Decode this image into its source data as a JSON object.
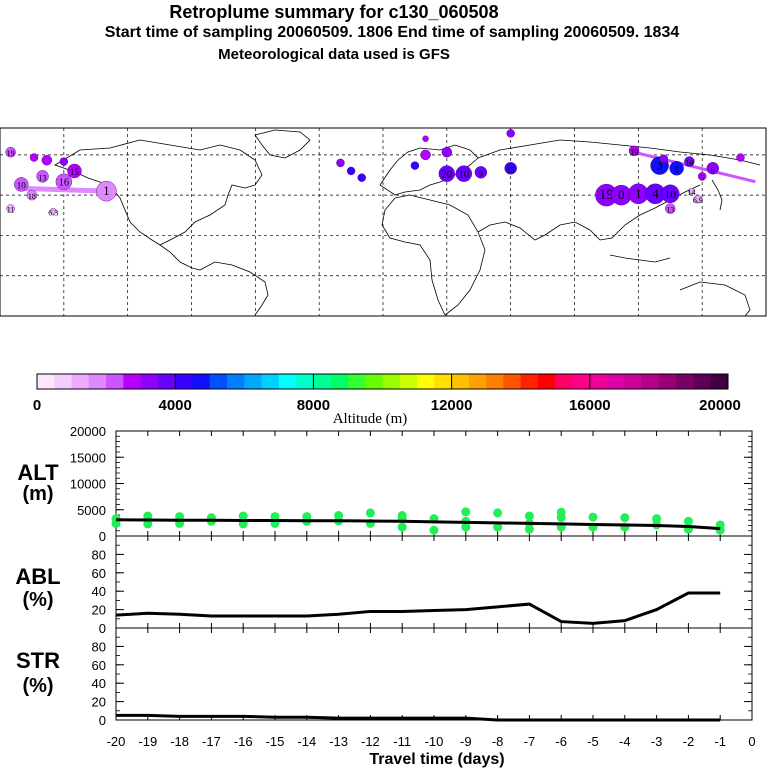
{
  "header": {
    "title": "Retroplume summary for c130_060508",
    "sampling": "Start time of sampling 20060509.  1806     End time of sampling 20060509.  1834",
    "met": "Meteorological data used is GFS"
  },
  "colorbar": {
    "label": "Altitude (m)",
    "ticks": [
      "0",
      "4000",
      "8000",
      "12000",
      "16000",
      "20000"
    ],
    "colors": [
      "#ffe6ff",
      "#f7ccff",
      "#eeaaff",
      "#e088ff",
      "#cc55ff",
      "#b400ff",
      "#8f00ff",
      "#6a00ff",
      "#3a00ff",
      "#1010ff",
      "#0050ff",
      "#0080ff",
      "#00a8ff",
      "#00d0ff",
      "#00ffff",
      "#00ffcc",
      "#00ff99",
      "#00ff66",
      "#33ff33",
      "#66ff00",
      "#99ff00",
      "#ccff00",
      "#ffff00",
      "#ffe000",
      "#ffc000",
      "#ffa000",
      "#ff8000",
      "#ff5500",
      "#ff2200",
      "#ff0000",
      "#ff0066",
      "#ff0088",
      "#ee0099",
      "#dd00aa",
      "#cc0099",
      "#b30088",
      "#990077",
      "#7a0066",
      "#5c0055",
      "#400040"
    ]
  },
  "map": {
    "points": [
      {
        "lon": -175,
        "lat": 62,
        "r": 5,
        "color": "#cc55ff",
        "label": "19"
      },
      {
        "lon": -164,
        "lat": 58,
        "r": 4,
        "color": "#b400ff",
        "label": ""
      },
      {
        "lon": -158,
        "lat": 56,
        "r": 5,
        "color": "#b400ff",
        "label": ""
      },
      {
        "lon": -150,
        "lat": 55,
        "r": 4,
        "color": "#8f00ff",
        "label": ""
      },
      {
        "lon": -145,
        "lat": 48,
        "r": 7,
        "color": "#b400ff",
        "label": "15"
      },
      {
        "lon": -160,
        "lat": 44,
        "r": 6,
        "color": "#cc55ff",
        "label": "13"
      },
      {
        "lon": -150,
        "lat": 40,
        "r": 8,
        "color": "#cc55ff",
        "label": "16"
      },
      {
        "lon": -170,
        "lat": 38,
        "r": 7,
        "color": "#cc55ff",
        "label": "10"
      },
      {
        "lon": -165,
        "lat": 30,
        "r": 5,
        "color": "#e088ff",
        "label": "18"
      },
      {
        "lon": -130,
        "lat": 33,
        "r": 10,
        "color": "#e088ff",
        "label": "1"
      },
      {
        "lon": -175,
        "lat": 20,
        "r": 4,
        "color": "#eeaaff",
        "label": "11"
      },
      {
        "lon": -155,
        "lat": 18,
        "r": 3,
        "color": "#eeaaff",
        "label": "6.3"
      },
      {
        "lon": -20,
        "lat": 54,
        "r": 4,
        "color": "#8f00ff",
        "label": ""
      },
      {
        "lon": -15,
        "lat": 48,
        "r": 4,
        "color": "#3a00ff",
        "label": ""
      },
      {
        "lon": -10,
        "lat": 43,
        "r": 4,
        "color": "#3a00ff",
        "label": ""
      },
      {
        "lon": 15,
        "lat": 52,
        "r": 4,
        "color": "#3a00ff",
        "label": ""
      },
      {
        "lon": 20,
        "lat": 60,
        "r": 5,
        "color": "#b400ff",
        "label": ""
      },
      {
        "lon": 20,
        "lat": 72,
        "r": 3,
        "color": "#b400ff",
        "label": ""
      },
      {
        "lon": 30,
        "lat": 62,
        "r": 5,
        "color": "#8f00ff",
        "label": ""
      },
      {
        "lon": 30,
        "lat": 46,
        "r": 8,
        "color": "#6a00ff",
        "label": "20"
      },
      {
        "lon": 38,
        "lat": 46,
        "r": 8,
        "color": "#6a00ff",
        "label": "10"
      },
      {
        "lon": 46,
        "lat": 47,
        "r": 6,
        "color": "#6a00ff",
        "label": "9"
      },
      {
        "lon": 60,
        "lat": 50,
        "r": 6,
        "color": "#3a00ff",
        "label": "15"
      },
      {
        "lon": 60,
        "lat": 76,
        "r": 4,
        "color": "#8f00ff",
        "label": ""
      },
      {
        "lon": 105,
        "lat": 30,
        "r": 11,
        "color": "#8f00ff",
        "label": "19"
      },
      {
        "lon": 112,
        "lat": 30,
        "r": 10,
        "color": "#8f00ff",
        "label": "0"
      },
      {
        "lon": 120,
        "lat": 31,
        "r": 10,
        "color": "#8f00ff",
        "label": "1"
      },
      {
        "lon": 128,
        "lat": 31,
        "r": 10,
        "color": "#6a00ff",
        "label": "4"
      },
      {
        "lon": 135,
        "lat": 31,
        "r": 9,
        "color": "#6a00ff",
        "label": "10"
      },
      {
        "lon": 135,
        "lat": 20,
        "r": 5,
        "color": "#cc55ff",
        "label": "13"
      },
      {
        "lon": 148,
        "lat": 27,
        "r": 4,
        "color": "#eeaaff",
        "label": "6.9"
      },
      {
        "lon": 145,
        "lat": 33,
        "r": 3,
        "color": "#eeaaff",
        "label": "14"
      },
      {
        "lon": 130,
        "lat": 52,
        "r": 9,
        "color": "#1010ff",
        "label": "3"
      },
      {
        "lon": 138,
        "lat": 50,
        "r": 7,
        "color": "#1010ff",
        "label": "8"
      },
      {
        "lon": 144,
        "lat": 55,
        "r": 5,
        "color": "#6a00ff",
        "label": "16"
      },
      {
        "lon": 155,
        "lat": 50,
        "r": 6,
        "color": "#8f00ff",
        "label": "6"
      },
      {
        "lon": 150,
        "lat": 44,
        "r": 4,
        "color": "#b400ff",
        "label": "5"
      },
      {
        "lon": 118,
        "lat": 63,
        "r": 5,
        "color": "#b400ff",
        "label": "19"
      },
      {
        "lon": 132,
        "lat": 57,
        "r": 4,
        "color": "#8f00ff",
        "label": ""
      },
      {
        "lon": 168,
        "lat": 58,
        "r": 4,
        "color": "#b400ff",
        "label": ""
      }
    ]
  },
  "panels": {
    "alt": {
      "label1": "ALT",
      "label2": "(m)"
    },
    "abl": {
      "label1": "ABL",
      "label2": "(%)"
    },
    "str": {
      "label1": "STR",
      "label2": "(%)"
    },
    "xlabel": "Travel time (days)"
  },
  "chart_data": [
    {
      "type": "scatter",
      "title": "ALT (m)",
      "xlabel": "Travel time (days)",
      "ylabel": "ALT (m)",
      "ylim": [
        0,
        20000
      ],
      "xlim": [
        -20,
        0
      ],
      "yticks": [
        "20000",
        "15000",
        "10000",
        "5000",
        "0"
      ],
      "mean_line": {
        "x": [
          -20,
          -19,
          -18,
          -17,
          -16,
          -15,
          -14,
          -13,
          -12,
          -11,
          -10,
          -9,
          -8,
          -7,
          -6,
          -5,
          -4,
          -3,
          -2,
          -1
        ],
        "y": [
          3100,
          3050,
          3000,
          3000,
          2950,
          2950,
          2900,
          2900,
          2850,
          2800,
          2700,
          2600,
          2500,
          2400,
          2300,
          2200,
          2100,
          2000,
          1800,
          1400
        ]
      },
      "points": [
        {
          "x": -20,
          "y": 3300
        },
        {
          "x": -20,
          "y": 2400
        },
        {
          "x": -19,
          "y": 3800
        },
        {
          "x": -19,
          "y": 2300
        },
        {
          "x": -18,
          "y": 3700
        },
        {
          "x": -18,
          "y": 2400
        },
        {
          "x": -17,
          "y": 3500
        },
        {
          "x": -17,
          "y": 2800
        },
        {
          "x": -16,
          "y": 3800
        },
        {
          "x": -16,
          "y": 2300
        },
        {
          "x": -15,
          "y": 3700
        },
        {
          "x": -15,
          "y": 2400
        },
        {
          "x": -14,
          "y": 3700
        },
        {
          "x": -14,
          "y": 2800
        },
        {
          "x": -13,
          "y": 3900
        },
        {
          "x": -13,
          "y": 2900
        },
        {
          "x": -12,
          "y": 4400
        },
        {
          "x": -12,
          "y": 2400
        },
        {
          "x": -11,
          "y": 3900
        },
        {
          "x": -11,
          "y": 3300
        },
        {
          "x": -11,
          "y": 1700
        },
        {
          "x": -10,
          "y": 3300
        },
        {
          "x": -10,
          "y": 1100
        },
        {
          "x": -9,
          "y": 4600
        },
        {
          "x": -9,
          "y": 2800
        },
        {
          "x": -9,
          "y": 1700
        },
        {
          "x": -8,
          "y": 4400
        },
        {
          "x": -8,
          "y": 1700
        },
        {
          "x": -7,
          "y": 3800
        },
        {
          "x": -7,
          "y": 2400
        },
        {
          "x": -7,
          "y": 1300
        },
        {
          "x": -6,
          "y": 4500
        },
        {
          "x": -6,
          "y": 3500
        },
        {
          "x": -6,
          "y": 1700
        },
        {
          "x": -5,
          "y": 3600
        },
        {
          "x": -5,
          "y": 1700
        },
        {
          "x": -4,
          "y": 3500
        },
        {
          "x": -4,
          "y": 1700
        },
        {
          "x": -3,
          "y": 3300
        },
        {
          "x": -3,
          "y": 2100
        },
        {
          "x": -2,
          "y": 2800
        },
        {
          "x": -2,
          "y": 1300
        },
        {
          "x": -1,
          "y": 2100
        },
        {
          "x": -1,
          "y": 1100
        }
      ]
    },
    {
      "type": "line",
      "title": "ABL (%)",
      "xlabel": "Travel time (days)",
      "ylabel": "ABL (%)",
      "ylim": [
        0,
        100
      ],
      "yticks": [
        "80",
        "60",
        "40",
        "20",
        "0"
      ],
      "x": [
        -20,
        -19,
        -18,
        -17,
        -16,
        -15,
        -14,
        -13,
        -12,
        -11,
        -10,
        -9,
        -8,
        -7,
        -6,
        -5,
        -4,
        -3,
        -2,
        -1
      ],
      "y": [
        14,
        16,
        15,
        13,
        13,
        13,
        13,
        15,
        18,
        18,
        19,
        20,
        23,
        26,
        7,
        5,
        8,
        20,
        38,
        38
      ]
    },
    {
      "type": "line",
      "title": "STR (%)",
      "xlabel": "Travel time (days)",
      "ylabel": "STR (%)",
      "ylim": [
        0,
        100
      ],
      "yticks": [
        "80",
        "60",
        "40",
        "20",
        "0"
      ],
      "x": [
        -20,
        -19,
        -18,
        -17,
        -16,
        -15,
        -14,
        -13,
        -12,
        -11,
        -10,
        -9,
        -8,
        -7,
        -6,
        -5,
        -4,
        -3,
        -2,
        -1
      ],
      "y": [
        5,
        5,
        4,
        4,
        4,
        3,
        3,
        2,
        2,
        2,
        2,
        2,
        0,
        0,
        0,
        0,
        0,
        0,
        0,
        0
      ]
    }
  ],
  "xaxis": {
    "ticks": [
      "-20",
      "-19",
      "-18",
      "-17",
      "-16",
      "-15",
      "-14",
      "-13",
      "-12",
      "-11",
      "-10",
      "-9",
      "-8",
      "-7",
      "-6",
      "-5",
      "-4",
      "-3",
      "-2",
      "-1",
      "0"
    ]
  }
}
